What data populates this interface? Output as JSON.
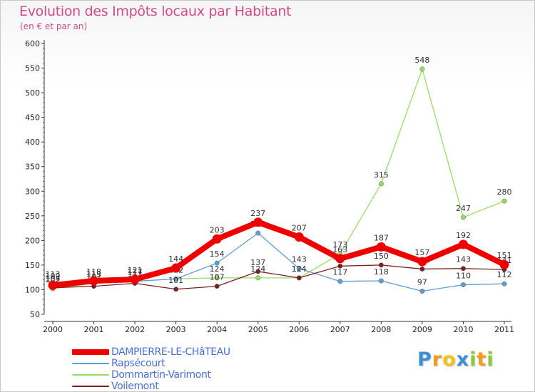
{
  "chart_data": {
    "type": "line",
    "title": "Evolution des Impôts locaux par Habitant",
    "subtitle": "(en € et par an)",
    "xlabel": "",
    "ylabel": "",
    "ylim": [
      50,
      600
    ],
    "yticks": [
      50,
      100,
      150,
      200,
      250,
      300,
      350,
      400,
      450,
      500,
      550,
      600
    ],
    "categories": [
      "2000",
      "2001",
      "2002",
      "2003",
      "2004",
      "2005",
      "2006",
      "2007",
      "2008",
      "2009",
      "2010",
      "2011"
    ],
    "series": [
      {
        "name": "Dommartin-Varimont",
        "color": "#99dd66",
        "values": [
          102,
          113,
          117,
          122,
          124,
          124,
          124,
          173,
          315,
          548,
          247,
          280
        ]
      },
      {
        "name": "Rapsécourt",
        "color": "#5f9fd0",
        "values": [
          113,
          113,
          117,
          122,
          154,
          215,
          143,
          117,
          118,
          97,
          110,
          112
        ]
      },
      {
        "name": "Voilemont",
        "color": "#7a1f1f",
        "values": [
          104,
          107,
          113,
          101,
          107,
          137,
          124,
          148,
          150,
          142,
          143,
          141
        ]
      },
      {
        "name": "DAMPIERRE-LE-CHâTEAU",
        "color": "#ee0000",
        "values": [
          109,
          118,
          121,
          144,
          203,
          237,
          207,
          163,
          187,
          157,
          192,
          151
        ]
      }
    ],
    "legend": "bottom-left",
    "grid": false
  },
  "logo": {
    "letters": [
      "P",
      "r",
      "o",
      "x",
      "i",
      "t",
      "i"
    ],
    "colors": [
      "#3e8fd8",
      "#f29a1a",
      "#f6c21a",
      "#3e8fd8",
      "#8ac83e",
      "#f29a1a",
      "#8ac83e"
    ]
  }
}
